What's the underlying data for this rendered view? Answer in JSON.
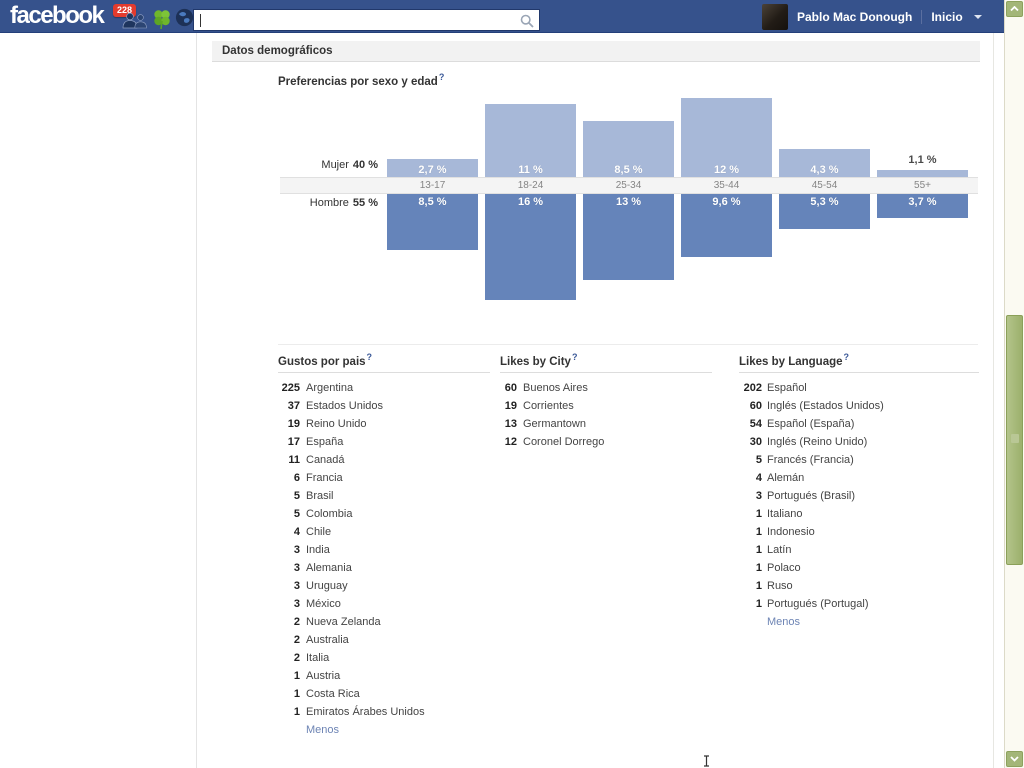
{
  "topbar": {
    "logo": "facebook",
    "notifications_badge": "228",
    "search": {
      "value": "",
      "placeholder": ""
    },
    "user_name": "Pablo Mac Donough",
    "home_label": "Inicio"
  },
  "page": {
    "section_title": "Datos demográficos",
    "help_glyph": "?"
  },
  "chart_data": {
    "type": "bar",
    "title": "Preferencias por sexo y edad",
    "orientation": "diverging (female above axis, male below)",
    "unit": "%",
    "categories": [
      "13-17",
      "18-24",
      "25-34",
      "35-44",
      "45-54",
      "55+"
    ],
    "series": [
      {
        "name": "Mujer",
        "total_label": "40 %",
        "values": [
          2.7,
          11,
          8.5,
          12,
          4.3,
          1.1
        ],
        "value_labels": [
          "2,7 %",
          "11 %",
          "8,5 %",
          "12 %",
          "4,3 %",
          "1,1 %"
        ],
        "color": "#a7b8d8"
      },
      {
        "name": "Hombre",
        "total_label": "55 %",
        "values": [
          8.5,
          16,
          13,
          9.6,
          5.3,
          3.7
        ],
        "value_labels": [
          "8,5 %",
          "16 %",
          "13 %",
          "9,6 %",
          "5,3 %",
          "3,7 %"
        ],
        "color": "#6584ba"
      }
    ]
  },
  "lists": [
    {
      "id": "countries",
      "title": "Gustos por pais",
      "more_label": "Menos",
      "items": [
        {
          "count": "225",
          "label": "Argentina"
        },
        {
          "count": "37",
          "label": "Estados Unidos"
        },
        {
          "count": "19",
          "label": "Reino Unido"
        },
        {
          "count": "17",
          "label": "España"
        },
        {
          "count": "11",
          "label": "Canadá"
        },
        {
          "count": "6",
          "label": "Francia"
        },
        {
          "count": "5",
          "label": "Brasil"
        },
        {
          "count": "5",
          "label": "Colombia"
        },
        {
          "count": "4",
          "label": "Chile"
        },
        {
          "count": "3",
          "label": "India"
        },
        {
          "count": "3",
          "label": "Alemania"
        },
        {
          "count": "3",
          "label": "Uruguay"
        },
        {
          "count": "3",
          "label": "México"
        },
        {
          "count": "2",
          "label": "Nueva Zelanda"
        },
        {
          "count": "2",
          "label": "Australia"
        },
        {
          "count": "2",
          "label": "Italia"
        },
        {
          "count": "1",
          "label": "Austria"
        },
        {
          "count": "1",
          "label": "Costa Rica"
        },
        {
          "count": "1",
          "label": "Emiratos Árabes Unidos"
        }
      ]
    },
    {
      "id": "cities",
      "title": "Likes by City",
      "more_label": "",
      "items": [
        {
          "count": "60",
          "label": "Buenos Aires"
        },
        {
          "count": "19",
          "label": "Corrientes"
        },
        {
          "count": "13",
          "label": "Germantown"
        },
        {
          "count": "12",
          "label": "Coronel Dorrego"
        }
      ]
    },
    {
      "id": "languages",
      "title": "Likes by Language",
      "more_label": "Menos",
      "items": [
        {
          "count": "202",
          "label": "Español"
        },
        {
          "count": "60",
          "label": "Inglés (Estados Unidos)"
        },
        {
          "count": "54",
          "label": "Español (España)"
        },
        {
          "count": "30",
          "label": "Inglés (Reino Unido)"
        },
        {
          "count": "5",
          "label": "Francés (Francia)"
        },
        {
          "count": "4",
          "label": "Alemán"
        },
        {
          "count": "3",
          "label": "Portugués (Brasil)"
        },
        {
          "count": "1",
          "label": "Italiano"
        },
        {
          "count": "1",
          "label": "Indonesio"
        },
        {
          "count": "1",
          "label": "Latín"
        },
        {
          "count": "1",
          "label": "Polaco"
        },
        {
          "count": "1",
          "label": "Ruso"
        },
        {
          "count": "1",
          "label": "Portugués (Portugal)"
        }
      ]
    }
  ],
  "colors": {
    "topbar_blue": "#36528c",
    "badge_red": "#e33b2e",
    "bar_female": "#a7b8d8",
    "bar_male": "#6584ba",
    "link_blue": "#6d84b4",
    "scrollbar_olive": "#a3b678"
  }
}
